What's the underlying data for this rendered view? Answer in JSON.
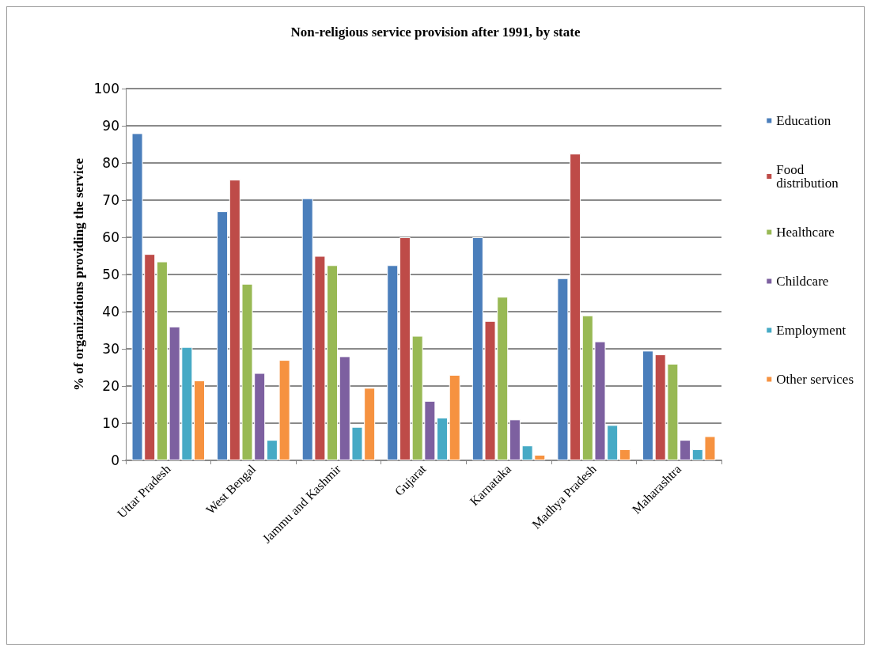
{
  "chart_data": {
    "type": "bar",
    "title": "Non-religious service provision after 1991, by state",
    "ylabel": "% of organizations providing the service",
    "categories": [
      "Uttar Pradesh",
      "West Bengal",
      "Jammu and Kashmir",
      "Gujarat",
      "Karnataka",
      "Madhya Pradesh",
      "Maharashtra"
    ],
    "series": [
      {
        "name": "Education",
        "color": "#4a7ebb",
        "values": [
          88,
          67,
          70.5,
          52.5,
          60,
          49,
          29.5
        ]
      },
      {
        "name": "Food distribution",
        "color": "#be4b48",
        "values": [
          55.5,
          75.5,
          55,
          60,
          37.5,
          82.5,
          28.5
        ]
      },
      {
        "name": "Healthcare",
        "color": "#98b954",
        "values": [
          53.5,
          47.5,
          52.5,
          33.5,
          44,
          39,
          26
        ]
      },
      {
        "name": "Childcare",
        "color": "#7d60a0",
        "values": [
          36,
          23.5,
          28,
          16,
          11,
          32,
          5.5
        ]
      },
      {
        "name": "Employment",
        "color": "#46aac5",
        "values": [
          30.5,
          5.5,
          9,
          11.5,
          4,
          9.5,
          3
        ]
      },
      {
        "name": "Other services",
        "color": "#f69240",
        "values": [
          21.5,
          27,
          19.5,
          23,
          1.5,
          3,
          6.5
        ]
      }
    ],
    "ylim": [
      0,
      100
    ],
    "yticks": [
      0,
      10,
      20,
      30,
      40,
      50,
      60,
      70,
      80,
      90,
      100
    ],
    "grid": "y",
    "legend": "right"
  }
}
